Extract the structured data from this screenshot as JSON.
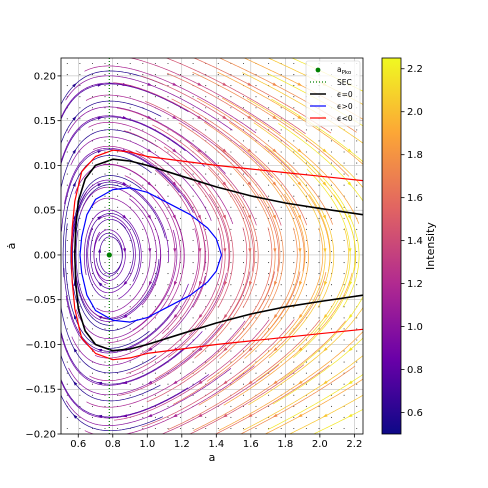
{
  "chart_data": {
    "type": "line",
    "subtype": "phase-portrait-streamplot",
    "xlabel": "a",
    "ylabel": "ȧ",
    "xlim": [
      0.5,
      2.25
    ],
    "ylim": [
      -0.2,
      0.22
    ],
    "xticks": [
      0.6,
      0.8,
      1.0,
      1.2,
      1.4,
      1.6,
      1.8,
      2.0,
      2.2
    ],
    "yticks": [
      -0.2,
      -0.15,
      -0.1,
      -0.05,
      0.0,
      0.05,
      0.1,
      0.15,
      0.2
    ],
    "xtick_labels": [
      "0.6",
      "0.8",
      "1.0",
      "1.2",
      "1.4",
      "1.6",
      "1.8",
      "2.0",
      "2.2"
    ],
    "ytick_labels": [
      "−0.20",
      "−0.15",
      "−0.10",
      "−0.05",
      "0.00",
      "0.05",
      "0.10",
      "0.15",
      "0.20"
    ],
    "grid": true,
    "legend_position": "top-right",
    "legend": [
      {
        "label": "a_Pko",
        "label_main": "a",
        "label_sub": "Pko",
        "style": "marker",
        "color": "#008000"
      },
      {
        "label": "SEC",
        "style": "dotted",
        "color": "#008000"
      },
      {
        "label": "ϵ=0",
        "style": "solid",
        "color": "#000000"
      },
      {
        "label": "ϵ>0",
        "style": "solid",
        "color": "#0000ff"
      },
      {
        "label": "ϵ<0",
        "style": "solid",
        "color": "#ff0000"
      }
    ],
    "fixed_point": {
      "x": 0.78,
      "y": 0.0
    },
    "sec_line_x": 0.78,
    "series": [
      {
        "name": "ϵ=0",
        "color": "#000000",
        "upper": [
          [
            2.25,
            0.045
          ],
          [
            2.0,
            0.052
          ],
          [
            1.8,
            0.058
          ],
          [
            1.6,
            0.066
          ],
          [
            1.4,
            0.076
          ],
          [
            1.2,
            0.088
          ],
          [
            1.0,
            0.1
          ],
          [
            0.9,
            0.105
          ],
          [
            0.8,
            0.107
          ],
          [
            0.7,
            0.1
          ],
          [
            0.64,
            0.085
          ],
          [
            0.6,
            0.06
          ],
          [
            0.585,
            0.03
          ],
          [
            0.58,
            0.0
          ]
        ],
        "lower": [
          [
            0.58,
            0.0
          ],
          [
            0.585,
            -0.03
          ],
          [
            0.6,
            -0.06
          ],
          [
            0.64,
            -0.085
          ],
          [
            0.7,
            -0.1
          ],
          [
            0.8,
            -0.107
          ],
          [
            0.9,
            -0.105
          ],
          [
            1.0,
            -0.1
          ],
          [
            1.2,
            -0.088
          ],
          [
            1.4,
            -0.076
          ],
          [
            1.6,
            -0.066
          ],
          [
            1.8,
            -0.058
          ],
          [
            2.0,
            -0.052
          ],
          [
            2.25,
            -0.045
          ]
        ]
      },
      {
        "name": "ϵ<0",
        "color": "#ff0000",
        "upper": [
          [
            2.25,
            0.083
          ],
          [
            2.0,
            0.088
          ],
          [
            1.8,
            0.092
          ],
          [
            1.6,
            0.096
          ],
          [
            1.4,
            0.1
          ],
          [
            1.2,
            0.105
          ],
          [
            1.0,
            0.11
          ],
          [
            0.9,
            0.115
          ],
          [
            0.8,
            0.117
          ],
          [
            0.7,
            0.11
          ],
          [
            0.62,
            0.093
          ],
          [
            0.58,
            0.06
          ],
          [
            0.565,
            0.03
          ],
          [
            0.56,
            0.0
          ]
        ],
        "lower": [
          [
            0.56,
            0.0
          ],
          [
            0.565,
            -0.03
          ],
          [
            0.58,
            -0.06
          ],
          [
            0.62,
            -0.093
          ],
          [
            0.7,
            -0.11
          ],
          [
            0.8,
            -0.117
          ],
          [
            0.9,
            -0.115
          ],
          [
            1.0,
            -0.11
          ],
          [
            1.2,
            -0.105
          ],
          [
            1.4,
            -0.1
          ],
          [
            1.6,
            -0.096
          ],
          [
            1.8,
            -0.092
          ],
          [
            2.0,
            -0.088
          ],
          [
            2.25,
            -0.083
          ]
        ]
      },
      {
        "name": "ϵ>0",
        "color": "#0000ff",
        "closed": true,
        "points": [
          [
            1.43,
            0.0
          ],
          [
            1.4,
            0.018
          ],
          [
            1.35,
            0.03
          ],
          [
            1.25,
            0.045
          ],
          [
            1.1,
            0.06
          ],
          [
            1.0,
            0.07
          ],
          [
            0.9,
            0.075
          ],
          [
            0.8,
            0.073
          ],
          [
            0.7,
            0.062
          ],
          [
            0.65,
            0.045
          ],
          [
            0.62,
            0.02
          ],
          [
            0.61,
            0.0
          ],
          [
            0.62,
            -0.02
          ],
          [
            0.65,
            -0.045
          ],
          [
            0.7,
            -0.062
          ],
          [
            0.8,
            -0.073
          ],
          [
            0.9,
            -0.075
          ],
          [
            1.0,
            -0.07
          ],
          [
            1.1,
            -0.06
          ],
          [
            1.25,
            -0.045
          ],
          [
            1.35,
            -0.03
          ],
          [
            1.4,
            -0.018
          ],
          [
            1.43,
            0.0
          ]
        ]
      }
    ],
    "colorbar": {
      "label": "Intensity",
      "range": [
        0.5,
        2.25
      ],
      "ticks": [
        0.6,
        0.8,
        1.0,
        1.2,
        1.4,
        1.6,
        1.8,
        2.0,
        2.2
      ],
      "tick_labels": [
        "0.6",
        "0.8",
        "1.0",
        "1.2",
        "1.4",
        "1.6",
        "1.8",
        "2.0",
        "2.2"
      ],
      "colormap": "plasma",
      "colormap_stops": [
        "#0d0887",
        "#6a00a8",
        "#b12a90",
        "#e16462",
        "#fca636",
        "#f0f921"
      ]
    }
  }
}
